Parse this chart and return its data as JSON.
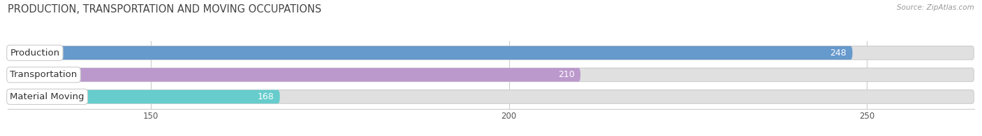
{
  "title": "PRODUCTION, TRANSPORTATION AND MOVING OCCUPATIONS",
  "source": "Source: ZipAtlas.com",
  "categories": [
    "Production",
    "Transportation",
    "Material Moving"
  ],
  "values": [
    248,
    210,
    168
  ],
  "bar_colors": [
    "#6699CC",
    "#BB99CC",
    "#66CCCC"
  ],
  "bar_bg_color": "#E0E0E0",
  "xmin": 130,
  "xmax": 265,
  "xticks": [
    150,
    200,
    250
  ],
  "title_fontsize": 10.5,
  "label_fontsize": 9.5,
  "value_fontsize": 9,
  "background_color": "#FFFFFF",
  "bar_height": 0.62,
  "bar_gap": 0.38
}
